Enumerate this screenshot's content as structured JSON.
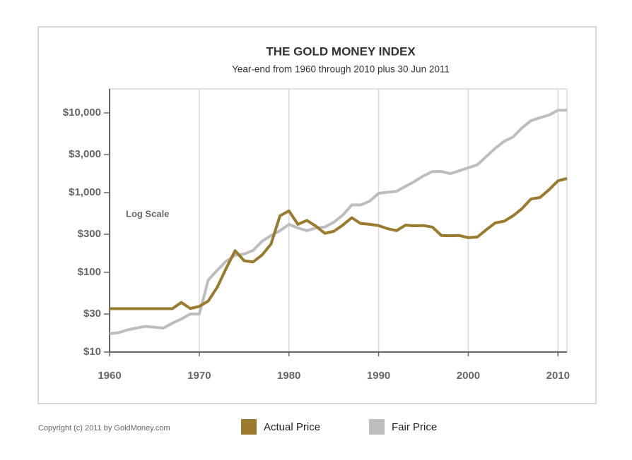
{
  "chart_data": {
    "type": "line",
    "title": "THE GOLD MONEY INDEX",
    "subtitle": "Year-end from 1960 through 2010 plus 30 Jun 2011",
    "annotation": "Log Scale",
    "copyright": "Copyright (c) 2011 by GoldMoney.com",
    "log_scale_y": true,
    "grid": "x",
    "x": [
      1960,
      1961,
      1962,
      1963,
      1964,
      1965,
      1966,
      1967,
      1968,
      1969,
      1970,
      1971,
      1972,
      1973,
      1974,
      1975,
      1976,
      1977,
      1978,
      1979,
      1980,
      1981,
      1982,
      1983,
      1984,
      1985,
      1986,
      1987,
      1988,
      1989,
      1990,
      1991,
      1992,
      1993,
      1994,
      1995,
      1996,
      1997,
      1998,
      1999,
      2000,
      2001,
      2002,
      2003,
      2004,
      2005,
      2006,
      2007,
      2008,
      2009,
      2010,
      2011
    ],
    "series": [
      {
        "name": "Fair Price",
        "color": "#bdbdbd",
        "values": [
          17,
          17.5,
          19,
          20,
          21,
          20.5,
          20,
          23,
          26,
          30,
          30,
          80,
          106,
          138,
          164,
          170,
          188,
          245,
          290,
          333,
          400,
          360,
          333,
          360,
          370,
          425,
          520,
          700,
          700,
          780,
          980,
          1010,
          1040,
          1200,
          1380,
          1620,
          1840,
          1840,
          1730,
          1880,
          2050,
          2230,
          2830,
          3600,
          4400,
          5000,
          6500,
          8000,
          8700,
          9400,
          10800,
          10800
        ]
      },
      {
        "name": "Actual Price",
        "color": "#9a7a2e",
        "values": [
          35,
          35,
          35,
          35,
          35,
          35,
          35,
          35,
          41.9,
          35.2,
          37.4,
          43.6,
          64.9,
          112,
          187,
          140,
          135,
          165,
          226,
          512,
          590,
          400,
          448,
          380,
          309,
          327,
          391,
          484,
          410,
          401,
          386,
          353,
          333,
          391,
          383,
          387,
          369,
          290,
          288,
          290,
          272,
          277,
          342,
          417,
          438,
          513,
          632,
          834,
          869,
          1087,
          1405,
          1505
        ]
      }
    ],
    "xlim": [
      1960,
      2011
    ],
    "xticks": [
      1960,
      1970,
      1980,
      1990,
      2000,
      2010
    ],
    "ylim": [
      10,
      20000
    ],
    "yticks": [
      {
        "value": 10,
        "label": "$10"
      },
      {
        "value": 30,
        "label": "$30"
      },
      {
        "value": 100,
        "label": "$100"
      },
      {
        "value": 300,
        "label": "$300"
      },
      {
        "value": 1000,
        "label": "$1,000"
      },
      {
        "value": 3000,
        "label": "$3,000"
      },
      {
        "value": 10000,
        "label": "$10,000"
      }
    ]
  }
}
